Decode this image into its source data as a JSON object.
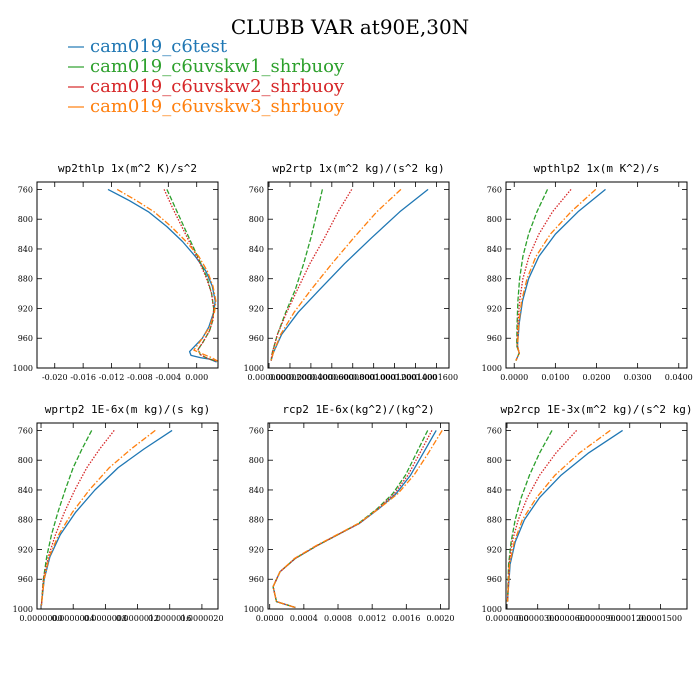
{
  "figure": {
    "title": "CLUBB VAR at90E,30N",
    "legend": [
      {
        "label": "cam019_c6test",
        "color": "#1f77b4"
      },
      {
        "label": "cam019_c6uvskw1_shrbuoy",
        "color": "#2ca02c"
      },
      {
        "label": "cam019_c6uvskw2_shrbuoy",
        "color": "#d62728"
      },
      {
        "label": "cam019_c6uvskw3_shrbuoy",
        "color": "#ff7f0e"
      }
    ]
  },
  "chart_data": [
    {
      "type": "line",
      "title": "wp2thlp  1x(m^2 K)/s^2",
      "xlim": [
        -0.0225,
        0.003
      ],
      "ylim": [
        1000,
        750
      ],
      "y_inverted": true,
      "xticks": [
        -0.02,
        -0.016,
        -0.012,
        -0.008,
        -0.004,
        0.0
      ],
      "xticklabels": [
        "-0.020",
        "-0.016",
        "-0.012",
        "-0.008",
        "-0.004",
        "0.000"
      ],
      "yticks": [
        760,
        800,
        840,
        880,
        920,
        960,
        1000
      ],
      "yticklabels": [
        "760",
        "800",
        "840",
        "880",
        "920",
        "960",
        "1000"
      ],
      "series": [
        {
          "name": "cam019_c6test",
          "color": "#1f77b4",
          "style": "solid",
          "x": [
            -0.0125,
            -0.0095,
            -0.0068,
            -0.0042,
            -0.002,
            -0.0002,
            0.0013,
            0.0022,
            0.0026,
            0.0024,
            0.0017,
            0.0008,
            -0.001,
            -0.0008,
            0.0005,
            0.0018,
            0.0028
          ],
          "y": [
            760,
            775,
            790,
            810,
            830,
            850,
            870,
            890,
            910,
            925,
            945,
            960,
            978,
            983,
            986,
            988,
            992
          ]
        },
        {
          "name": "cam019_c6uvskw1_shrbuoy",
          "color": "#2ca02c",
          "style": "dashed",
          "x": [
            -0.0042,
            -0.003,
            -0.0018,
            -0.0006,
            0.0006,
            0.0015,
            0.0021,
            0.0024,
            0.0023,
            0.0018,
            0.0009,
            0.0002,
            0.0005,
            0.0015,
            0.0028
          ],
          "y": [
            760,
            785,
            810,
            835,
            860,
            880,
            900,
            920,
            935,
            950,
            965,
            975,
            982,
            987,
            991
          ]
        },
        {
          "name": "cam019_c6uvskw2_shrbuoy",
          "color": "#d62728",
          "style": "dotted",
          "x": [
            -0.0046,
            -0.0034,
            -0.0021,
            -0.0008,
            0.0005,
            0.0014,
            0.0021,
            0.0024,
            0.0023,
            0.0018,
            0.0009,
            0.0002,
            0.0005,
            0.0015,
            0.0028
          ],
          "y": [
            760,
            785,
            810,
            835,
            860,
            880,
            900,
            920,
            935,
            950,
            965,
            975,
            982,
            987,
            991
          ]
        },
        {
          "name": "cam019_c6uvskw3_shrbuoy",
          "color": "#ff7f0e",
          "style": "dashdot",
          "x": [
            -0.0112,
            -0.0085,
            -0.006,
            -0.0036,
            -0.0015,
            0.0003,
            0.0015,
            0.0023,
            0.0027,
            0.0025,
            0.0018,
            0.0008,
            -0.0004,
            0.0008,
            0.0021,
            0.003
          ],
          "y": [
            760,
            775,
            790,
            810,
            830,
            850,
            870,
            890,
            910,
            925,
            945,
            960,
            976,
            981,
            986,
            991
          ]
        }
      ]
    },
    {
      "type": "line",
      "title": "wp2rtp  1x(m^2 kg)/(s^2 kg)",
      "xlim": [
        -1e-06,
        0.000172
      ],
      "ylim": [
        1000,
        750
      ],
      "y_inverted": true,
      "xticks": [
        0,
        2e-05,
        4e-05,
        6e-05,
        8e-05,
        0.0001,
        0.00012,
        0.00014,
        0.00016
      ],
      "xticklabels": [
        "0.0000000",
        "0.0000200",
        "0.0000400",
        "0.0000600",
        "0.0000800",
        "0.0001000",
        "0.0001200",
        "0.0001400",
        "0.0001600"
      ],
      "yticks": [
        760,
        800,
        840,
        880,
        920,
        960,
        1000
      ],
      "yticklabels": [
        "760",
        "800",
        "840",
        "880",
        "920",
        "960",
        "1000"
      ],
      "series": [
        {
          "name": "cam019_c6test",
          "color": "#1f77b4",
          "style": "solid",
          "x": [
            0.000152,
            0.000125,
            9.8e-05,
            7.2e-05,
            4.8e-05,
            2.8e-05,
            1.2e-05,
            4e-06,
            2e-06
          ],
          "y": [
            760,
            790,
            825,
            860,
            895,
            925,
            955,
            980,
            990
          ]
        },
        {
          "name": "cam019_c6uvskw1_shrbuoy",
          "color": "#2ca02c",
          "style": "dashed",
          "x": [
            5.1e-05,
            4.6e-05,
            4e-05,
            3.3e-05,
            2.5e-05,
            1.6e-05,
            8e-06,
            3e-06,
            2e-06
          ],
          "y": [
            760,
            790,
            825,
            860,
            895,
            925,
            955,
            980,
            990
          ]
        },
        {
          "name": "cam019_c6uvskw2_shrbuoy",
          "color": "#d62728",
          "style": "dotted",
          "x": [
            7.9e-05,
            6.6e-05,
            5.3e-05,
            3.9e-05,
            2.7e-05,
            1.7e-05,
            8e-06,
            3e-06,
            2e-06
          ],
          "y": [
            760,
            790,
            825,
            860,
            895,
            925,
            955,
            980,
            990
          ]
        },
        {
          "name": "cam019_c6uvskw3_shrbuoy",
          "color": "#ff7f0e",
          "style": "dashdot",
          "x": [
            0.000126,
            0.000103,
            8.1e-05,
            6e-05,
            4e-05,
            2.4e-05,
            1.1e-05,
            4e-06,
            2e-06
          ],
          "y": [
            760,
            790,
            825,
            860,
            895,
            925,
            955,
            980,
            990
          ]
        }
      ]
    },
    {
      "type": "line",
      "title": "wpthlp2  1x(m K^2)/s",
      "xlim": [
        -0.002,
        0.042
      ],
      "ylim": [
        1000,
        750
      ],
      "y_inverted": true,
      "xticks": [
        0,
        0.01,
        0.02,
        0.03,
        0.04
      ],
      "xticklabels": [
        "0.0000",
        "0.0100",
        "0.0200",
        "0.0300",
        "0.0400"
      ],
      "yticks": [
        760,
        800,
        840,
        880,
        920,
        960,
        1000
      ],
      "yticklabels": [
        "760",
        "800",
        "840",
        "880",
        "920",
        "960",
        "1000"
      ],
      "series": [
        {
          "name": "cam019_c6test",
          "color": "#1f77b4",
          "style": "solid",
          "x": [
            0.0222,
            0.0155,
            0.01,
            0.006,
            0.0035,
            0.002,
            0.0012,
            0.0008,
            0.0012,
            0.0004
          ],
          "y": [
            760,
            790,
            820,
            850,
            880,
            910,
            940,
            970,
            980,
            990
          ]
        },
        {
          "name": "cam019_c6uvskw1_shrbuoy",
          "color": "#2ca02c",
          "style": "dashed",
          "x": [
            0.0081,
            0.0055,
            0.0035,
            0.0021,
            0.0013,
            0.0009,
            0.0007,
            0.0006,
            0.0012,
            0.0004
          ],
          "y": [
            760,
            790,
            820,
            850,
            880,
            910,
            940,
            970,
            980,
            990
          ]
        },
        {
          "name": "cam019_c6uvskw2_shrbuoy",
          "color": "#d62728",
          "style": "dotted",
          "x": [
            0.0138,
            0.0093,
            0.006,
            0.0036,
            0.0021,
            0.0013,
            0.0009,
            0.0007,
            0.0012,
            0.0004
          ],
          "y": [
            760,
            790,
            820,
            850,
            880,
            910,
            940,
            970,
            980,
            990
          ]
        },
        {
          "name": "cam019_c6uvskw3_shrbuoy",
          "color": "#ff7f0e",
          "style": "dashdot",
          "x": [
            0.0198,
            0.0138,
            0.0088,
            0.0053,
            0.0031,
            0.0018,
            0.0011,
            0.0008,
            0.0012,
            0.0004
          ],
          "y": [
            760,
            790,
            820,
            850,
            880,
            910,
            940,
            970,
            980,
            990
          ]
        }
      ]
    },
    {
      "type": "line",
      "title": "wprtp2  1E-6x(m kg)/(s kg)",
      "xlim": [
        -5e-08,
        2.2e-06
      ],
      "ylim": [
        1000,
        750
      ],
      "y_inverted": true,
      "xticks": [
        0,
        4e-07,
        8e-07,
        1.2e-06,
        1.6e-06,
        2e-06
      ],
      "xticklabels": [
        "0.0000000",
        "0.0000004",
        "0.0000008",
        "0.0000012",
        "0.0000016",
        "0.0000020"
      ],
      "yticks": [
        760,
        800,
        840,
        880,
        920,
        960,
        1000
      ],
      "yticklabels": [
        "760",
        "800",
        "840",
        "880",
        "920",
        "960",
        "1000"
      ],
      "series": [
        {
          "name": "cam019_c6test",
          "color": "#1f77b4",
          "style": "solid",
          "x": [
            1.63e-06,
            1.28e-06,
            9.6e-07,
            6.7e-07,
            4.3e-07,
            2.4e-07,
            1.1e-07,
            4e-08,
            5e-09
          ],
          "y": [
            760,
            785,
            810,
            840,
            870,
            900,
            930,
            960,
            995
          ]
        },
        {
          "name": "cam019_c6uvskw1_shrbuoy",
          "color": "#2ca02c",
          "style": "dashed",
          "x": [
            6.3e-07,
            5.1e-07,
            4e-07,
            3e-07,
            2.1e-07,
            1.3e-07,
            7e-08,
            3e-08,
            5e-09
          ],
          "y": [
            760,
            785,
            810,
            840,
            870,
            900,
            930,
            960,
            995
          ]
        },
        {
          "name": "cam019_c6uvskw2_shrbuoy",
          "color": "#d62728",
          "style": "dotted",
          "x": [
            9.1e-07,
            7.3e-07,
            5.7e-07,
            4.2e-07,
            2.9e-07,
            1.8e-07,
            9e-08,
            3e-08,
            5e-09
          ],
          "y": [
            760,
            785,
            810,
            840,
            870,
            900,
            930,
            960,
            995
          ]
        },
        {
          "name": "cam019_c6uvskw3_shrbuoy",
          "color": "#ff7f0e",
          "style": "dashdot",
          "x": [
            1.42e-06,
            1.12e-06,
            8.5e-07,
            6e-07,
            3.9e-07,
            2.2e-07,
            1e-07,
            4e-08,
            5e-09
          ],
          "y": [
            760,
            785,
            810,
            840,
            870,
            900,
            930,
            960,
            995
          ]
        }
      ]
    },
    {
      "type": "line",
      "title": "rcp2  1E-6x(kg^2)/(kg^2)",
      "xlim": [
        -2e-05,
        0.0021
      ],
      "ylim": [
        1000,
        750
      ],
      "y_inverted": true,
      "xticks": [
        0,
        0.0004,
        0.0008,
        0.0012,
        0.0016,
        0.002
      ],
      "xticklabels": [
        "0.0000",
        "0.0004",
        "0.0008",
        "0.0012",
        "0.0016",
        "0.0020"
      ],
      "yticks": [
        760,
        800,
        840,
        880,
        920,
        960,
        1000
      ],
      "yticklabels": [
        "760",
        "800",
        "840",
        "880",
        "920",
        "960",
        "1000"
      ],
      "series": [
        {
          "name": "cam019_c6test",
          "color": "#1f77b4",
          "style": "solid",
          "x": [
            0.00195,
            0.0018,
            0.00165,
            0.00148,
            0.00128,
            0.00105,
            0.0008,
            0.00055,
            0.0003,
            0.00012,
            4e-05,
            8e-05,
            0.0003
          ],
          "y": [
            760,
            790,
            820,
            845,
            865,
            885,
            900,
            915,
            932,
            950,
            970,
            990,
            998
          ]
        },
        {
          "name": "cam019_c6uvskw1_shrbuoy",
          "color": "#2ca02c",
          "style": "dashed",
          "x": [
            0.00185,
            0.00172,
            0.00159,
            0.00144,
            0.00126,
            0.00104,
            0.0008,
            0.00055,
            0.0003,
            0.00012,
            4e-05,
            8e-05,
            0.0003
          ],
          "y": [
            760,
            790,
            820,
            845,
            865,
            885,
            900,
            915,
            932,
            950,
            970,
            990,
            998
          ]
        },
        {
          "name": "cam019_c6uvskw2_shrbuoy",
          "color": "#d62728",
          "style": "dotted",
          "x": [
            0.0019,
            0.00176,
            0.00162,
            0.00146,
            0.00127,
            0.00105,
            0.0008,
            0.00055,
            0.0003,
            0.00012,
            4e-05,
            8e-05,
            0.0003
          ],
          "y": [
            760,
            790,
            820,
            845,
            865,
            885,
            900,
            915,
            932,
            950,
            970,
            990,
            998
          ]
        },
        {
          "name": "cam019_c6uvskw3_shrbuoy",
          "color": "#ff7f0e",
          "style": "dashdot",
          "x": [
            0.00202,
            0.00186,
            0.00169,
            0.0015,
            0.00128,
            0.00104,
            0.00079,
            0.00054,
            0.00029,
            0.00012,
            4e-05,
            8e-05,
            0.0003
          ],
          "y": [
            760,
            790,
            820,
            845,
            865,
            885,
            900,
            915,
            932,
            950,
            970,
            990,
            998
          ]
        }
      ]
    },
    {
      "type": "line",
      "title": "wp2rcp  1E-3x(m^2 kg)/(s^2 kg)",
      "xlim": [
        -1e-06,
        0.000176
      ],
      "ylim": [
        1000,
        750
      ],
      "y_inverted": true,
      "xticks": [
        0,
        3e-05,
        6e-05,
        9e-05,
        0.00012,
        0.00015
      ],
      "xticklabels": [
        "0.0000000",
        "0.0000300",
        "0.0000600",
        "0.0000900",
        "0.0001200",
        "0.0001500"
      ],
      "yticks": [
        760,
        800,
        840,
        880,
        920,
        960,
        1000
      ],
      "yticklabels": [
        "760",
        "800",
        "840",
        "880",
        "920",
        "960",
        "1000"
      ],
      "series": [
        {
          "name": "cam019_c6test",
          "color": "#1f77b4",
          "style": "solid",
          "x": [
            0.000113,
            8e-05,
            5.3e-05,
            3.2e-05,
            1.7e-05,
            8e-06,
            3e-06,
            5e-07
          ],
          "y": [
            760,
            790,
            820,
            850,
            880,
            910,
            940,
            990
          ]
        },
        {
          "name": "cam019_c6uvskw1_shrbuoy",
          "color": "#2ca02c",
          "style": "dashed",
          "x": [
            4.4e-05,
            3.2e-05,
            2.2e-05,
            1.4e-05,
            8e-06,
            4e-06,
            1.5e-06,
            5e-07
          ],
          "y": [
            760,
            790,
            820,
            850,
            880,
            910,
            940,
            990
          ]
        },
        {
          "name": "cam019_c6uvskw2_shrbuoy",
          "color": "#d62728",
          "style": "dotted",
          "x": [
            6.8e-05,
            4.8e-05,
            3.2e-05,
            2e-05,
            1.1e-05,
            5e-06,
            2e-06,
            5e-07
          ],
          "y": [
            760,
            790,
            820,
            850,
            880,
            910,
            940,
            990
          ]
        },
        {
          "name": "cam019_c6uvskw3_shrbuoy",
          "color": "#ff7f0e",
          "style": "dashdot",
          "x": [
            0.000101,
            7.1e-05,
            4.7e-05,
            2.9e-05,
            1.5e-05,
            7e-06,
            2.5e-06,
            5e-07
          ],
          "y": [
            760,
            790,
            820,
            850,
            880,
            910,
            940,
            990
          ]
        }
      ]
    }
  ]
}
